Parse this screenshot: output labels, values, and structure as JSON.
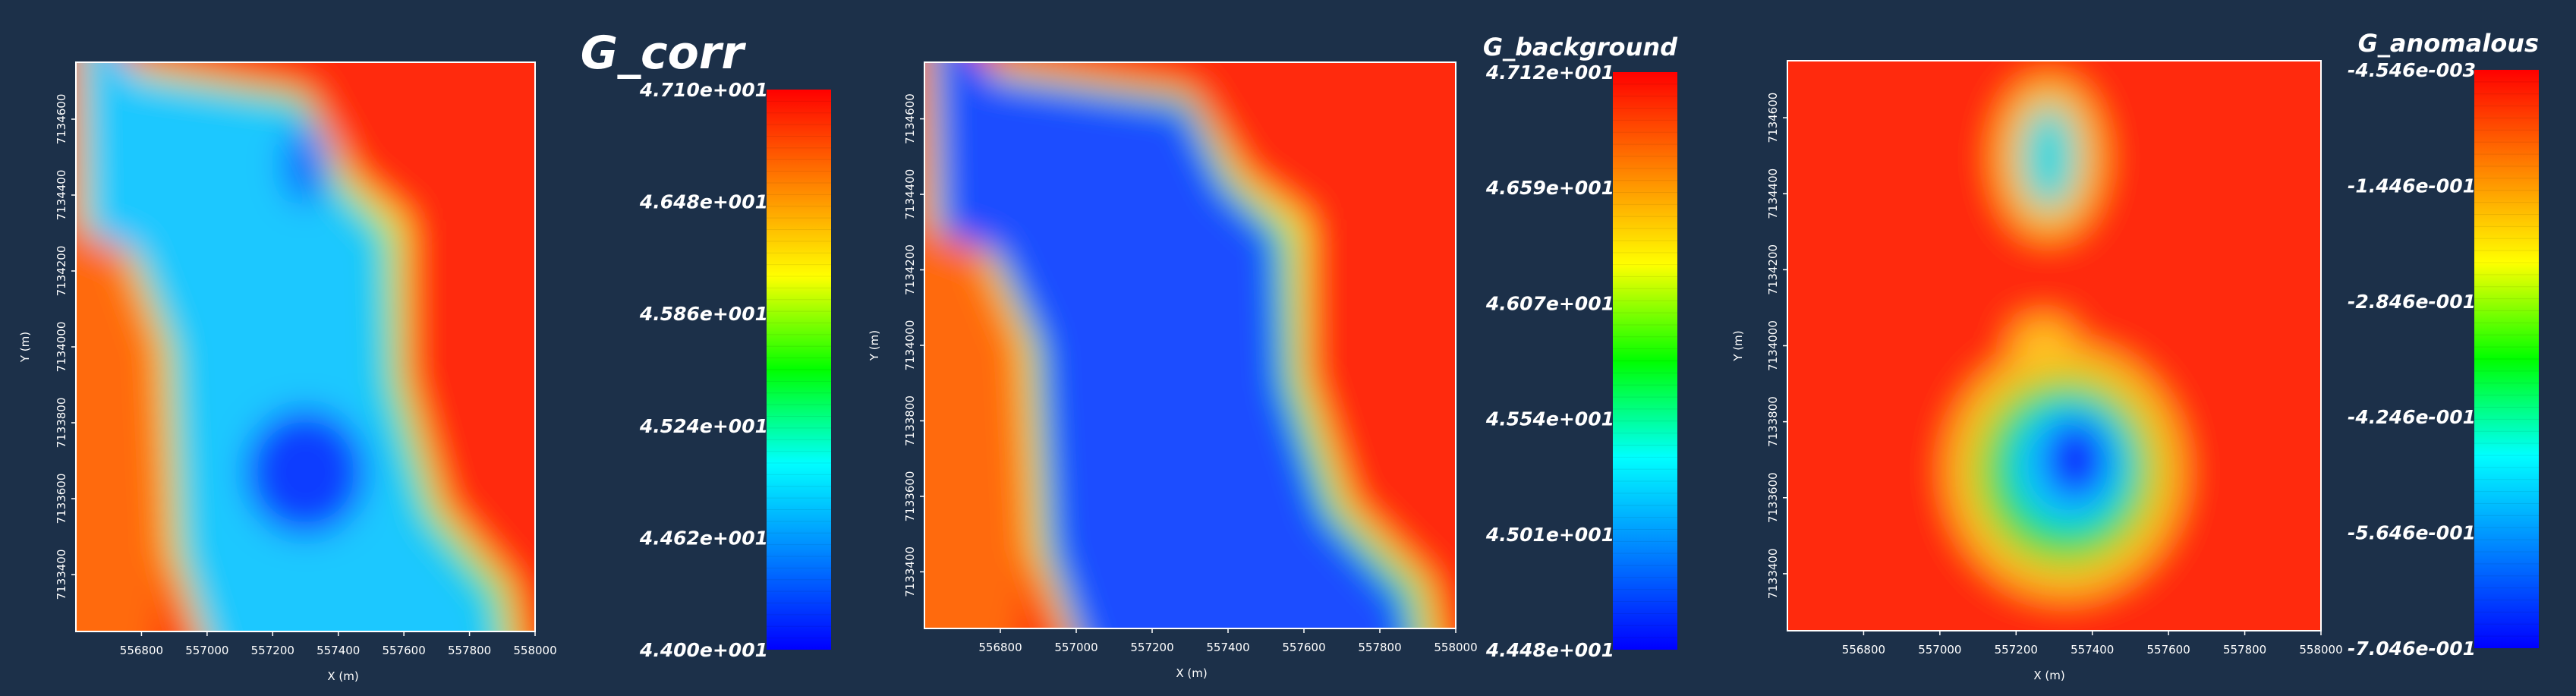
{
  "colors": {
    "background": "#1c3049",
    "colormap": [
      "#0000ff",
      "#0080ff",
      "#00ffff",
      "#00ff00",
      "#ffff00",
      "#ff8000",
      "#ff0000"
    ]
  },
  "chart_data": [
    {
      "type": "heatmap",
      "title": "G_corr",
      "xlabel": "X (m)",
      "ylabel": "Y (m)",
      "x_ticks": [
        556800,
        557000,
        557200,
        557400,
        557600,
        557800,
        558000
      ],
      "y_ticks": [
        7133400,
        7133600,
        7133800,
        7134000,
        7134200,
        7134400,
        7134600
      ],
      "xlim": [
        556600,
        558000
      ],
      "ylim": [
        7133250,
        7134750
      ],
      "colorbar": {
        "min": 44.0,
        "max": 47.1,
        "tick_labels": [
          "4.710e+001",
          "4.648e+001",
          "4.586e+001",
          "4.524e+001",
          "4.462e+001",
          "4.400e+001"
        ]
      }
    },
    {
      "type": "heatmap",
      "title": "G_background",
      "xlabel": "X (m)",
      "ylabel": "Y (m)",
      "x_ticks": [
        556800,
        557000,
        557200,
        557400,
        557600,
        557800,
        558000
      ],
      "y_ticks": [
        7133400,
        7133600,
        7133800,
        7134000,
        7134200,
        7134400,
        7134600
      ],
      "xlim": [
        556600,
        558000
      ],
      "ylim": [
        7133250,
        7134750
      ],
      "colorbar": {
        "min": 44.48,
        "max": 47.12,
        "tick_labels": [
          "4.712e+001",
          "4.659e+001",
          "4.607e+001",
          "4.554e+001",
          "4.501e+001",
          "4.448e+001"
        ]
      }
    },
    {
      "type": "heatmap",
      "title": "G_anomalous",
      "xlabel": "X (m)",
      "ylabel": "Y (m)",
      "x_ticks": [
        556800,
        557000,
        557200,
        557400,
        557600,
        557800,
        558000
      ],
      "y_ticks": [
        7133400,
        7133600,
        7133800,
        7134000,
        7134200,
        7134400,
        7134600
      ],
      "xlim": [
        556600,
        558000
      ],
      "ylim": [
        7133250,
        7134750
      ],
      "colorbar": {
        "min": -0.7046,
        "max": -0.004546,
        "tick_labels": [
          "-4.546e-003",
          "-1.446e-001",
          "-2.846e-001",
          "-4.246e-001",
          "-5.646e-001",
          "-7.046e-001"
        ]
      }
    }
  ]
}
